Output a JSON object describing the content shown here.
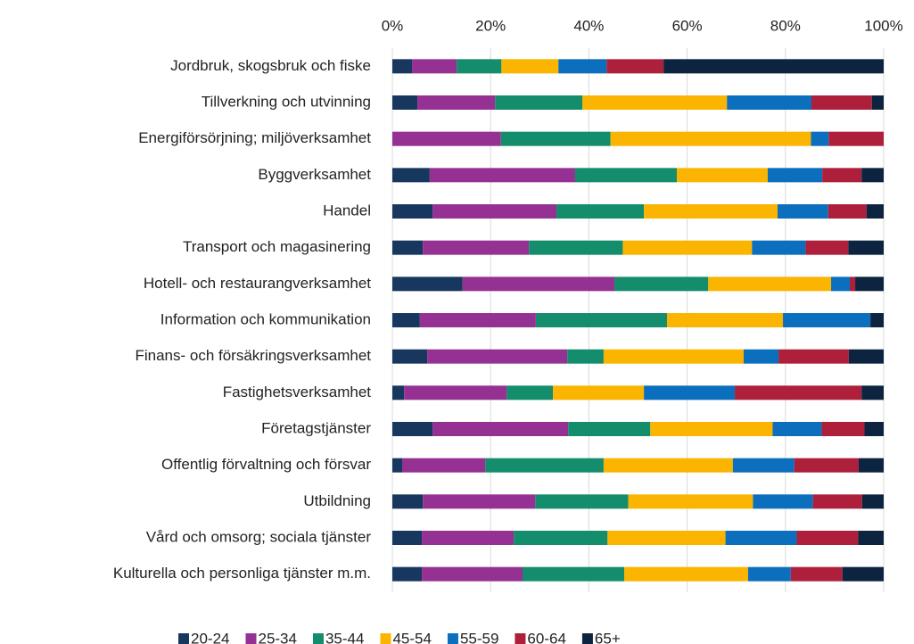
{
  "chart_data": {
    "type": "stacked-bar-horizontal",
    "categories": [
      "Jordbruk, skogsbruk och fiske",
      "Tillverkning och utvinning",
      "Energiförsörjning; miljöverksamhet",
      "Byggverksamhet",
      "Handel",
      "Transport och magasinering",
      "Hotell- och restaurangverksamhet",
      "Information och kommunikation",
      "Finans- och försäkringsverksamhet",
      "Fastighetsverksamhet",
      "Företagstjänster",
      "Offentlig förvaltning och försvar",
      "Utbildning",
      "Vård och omsorg; sociala tjänster",
      "Kulturella och personliga tjänster m.m."
    ],
    "series": [
      {
        "name": "20-24",
        "color": "#17375e",
        "values": [
          4.0,
          5.1,
          0,
          7.6,
          8.2,
          6.2,
          14.3,
          5.6,
          7.1,
          2.4,
          8.2,
          2.0,
          6.2,
          6.0,
          6.0
        ]
      },
      {
        "name": "25-34",
        "color": "#953193",
        "values": [
          9.1,
          15.8,
          22.1,
          29.6,
          25.2,
          21.6,
          30.9,
          23.6,
          28.5,
          20.9,
          27.6,
          16.9,
          22.9,
          18.7,
          20.5
        ]
      },
      {
        "name": "35-44",
        "color": "#138d6b",
        "values": [
          9.1,
          17.8,
          22.3,
          20.7,
          17.8,
          19.1,
          19.1,
          26.7,
          7.4,
          9.4,
          16.7,
          24.1,
          18.9,
          19.1,
          20.7
        ]
      },
      {
        "name": "45-54",
        "color": "#fbb400",
        "values": [
          11.6,
          29.4,
          40.8,
          18.5,
          27.2,
          26.3,
          25.0,
          23.6,
          28.5,
          18.5,
          24.9,
          26.3,
          25.4,
          24.0,
          25.2
        ]
      },
      {
        "name": "55-59",
        "color": "#0b6fbd",
        "values": [
          9.8,
          17.2,
          3.6,
          11.1,
          10.3,
          10.9,
          3.8,
          17.8,
          7.1,
          18.5,
          10.0,
          12.5,
          12.2,
          14.5,
          8.7
        ]
      },
      {
        "name": "60-64",
        "color": "#ad1f3a",
        "values": [
          11.6,
          12.3,
          11.2,
          8.0,
          7.8,
          8.7,
          1.1,
          0,
          14.3,
          25.8,
          8.7,
          13.1,
          10.0,
          12.5,
          10.5
        ]
      },
      {
        "name": "65+",
        "color": "#0c2440",
        "values": [
          44.8,
          2.4,
          0,
          4.5,
          3.5,
          7.2,
          5.8,
          2.7,
          7.1,
          4.5,
          3.9,
          5.1,
          4.4,
          5.2,
          8.4
        ]
      }
    ],
    "xlim": [
      0,
      100
    ],
    "xticks": [
      {
        "value": 0,
        "label": "0%"
      },
      {
        "value": 20,
        "label": "20%"
      },
      {
        "value": 40,
        "label": "40%"
      },
      {
        "value": 60,
        "label": "60%"
      },
      {
        "value": 80,
        "label": "80%"
      },
      {
        "value": 100,
        "label": "100%"
      }
    ],
    "grid": true,
    "legend": "bottom"
  }
}
